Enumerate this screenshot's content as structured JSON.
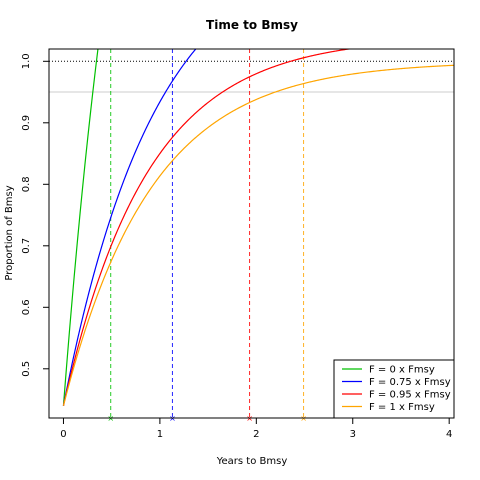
{
  "chart_data": {
    "type": "line",
    "title": "Time to Bmsy",
    "xlabel": "Years to Bmsy",
    "ylabel": "Proportion of Bmsy",
    "xlim": [
      -0.15,
      4.05
    ],
    "ylim": [
      0.42,
      1.02
    ],
    "x_ticks": [
      0,
      1,
      2,
      3,
      4
    ],
    "y_ticks": [
      0.5,
      0.6,
      0.7,
      0.8,
      0.9,
      1.0
    ],
    "x_tick_labels": [
      "0",
      "1",
      "2",
      "3",
      "4"
    ],
    "y_tick_labels": [
      "0.5",
      "0.6",
      "0.7",
      "0.8",
      "0.9",
      "1.0"
    ],
    "start_value": 0.44,
    "reference_lines": [
      {
        "y": 1.0,
        "style": "dotted",
        "color": "#000000"
      },
      {
        "y": 0.95,
        "style": "solid",
        "color": "#cccccc"
      }
    ],
    "legend_position": "bottom-right",
    "series": [
      {
        "name": "F = 0 x Fmsy",
        "color": "#00c000",
        "rate": 1.3,
        "asymptote": 2.0,
        "time_to_95": 0.49
      },
      {
        "name": "F = 0.75 x Fmsy",
        "color": "#0000ff",
        "rate": 1.05,
        "asymptote": 1.2,
        "time_to_95": 1.13
      },
      {
        "name": "F = 0.95 x Fmsy",
        "color": "#ff0000",
        "rate": 1.15,
        "asymptote": 1.04,
        "time_to_95": 1.93
      },
      {
        "name": "F = 1 x Fmsy",
        "color": "#ffa500",
        "rate": 1.1,
        "asymptote": 1.0,
        "time_to_95": 2.49
      }
    ]
  }
}
